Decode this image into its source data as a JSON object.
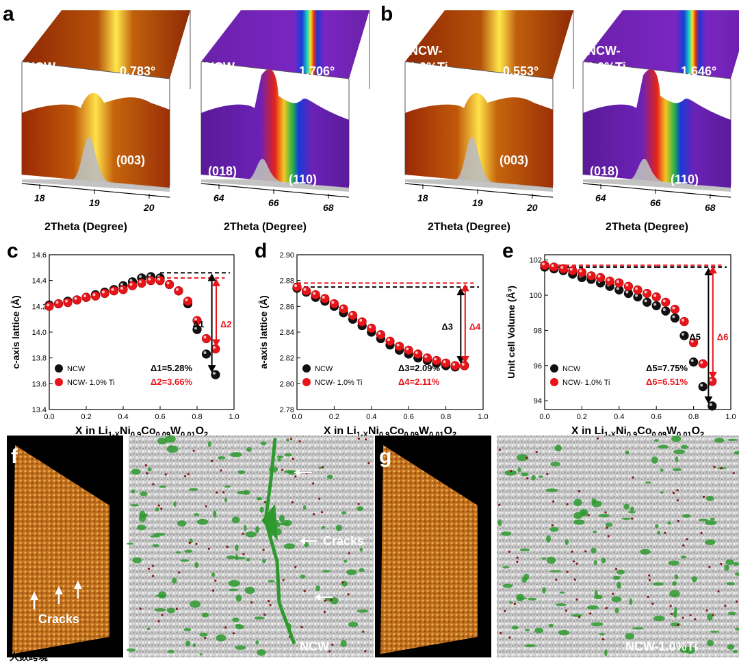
{
  "panels": {
    "a": {
      "label": "a",
      "maps": [
        {
          "sample": "NCW",
          "fwhm": "0.783°",
          "peaks": [
            "(003)"
          ],
          "ticks": [
            "18",
            "19",
            "20"
          ],
          "xlabel": "2Theta (Degree)"
        },
        {
          "sample": "NCW",
          "fwhm": "1.706°",
          "peaks": [
            "(018)",
            "(110)"
          ],
          "ticks": [
            "64",
            "66",
            "68"
          ],
          "xlabel": "2Theta (Degree)"
        }
      ]
    },
    "b": {
      "label": "b",
      "maps": [
        {
          "sample_l1": "NCW-",
          "sample_l2": "1.0%Ti",
          "fwhm": "0.553°",
          "peaks": [
            "(003)"
          ],
          "ticks": [
            "18",
            "19",
            "20"
          ],
          "xlabel": "2Theta (Degree)"
        },
        {
          "sample_l1": "NCW-",
          "sample_l2": "1.0%Ti",
          "fwhm": "1.646°",
          "peaks": [
            "(018)",
            "(110)"
          ],
          "ticks": [
            "64",
            "66",
            "68"
          ],
          "xlabel": "2Theta (Degree)"
        }
      ]
    },
    "f": {
      "label": "f",
      "cracks_label": "Cracks",
      "cracks_label2": "Cracks",
      "sample": "NCW"
    },
    "g": {
      "label": "g",
      "sample": "NCW-1.0%Ti"
    }
  },
  "xlabel_parts": {
    "pre": "X in Li",
    "s1": "1-X",
    "m1": "Ni",
    "s2": "0.9",
    "m2": "Co",
    "s3": "0.09",
    "m3": "W",
    "s4": "0.01",
    "m4": "O",
    "s5": "2"
  },
  "watermark": "大数跨境",
  "chart_data": [
    {
      "panel": "c",
      "type": "scatter",
      "ylabel": "c-axis lattice (Å)",
      "xlim": [
        0.0,
        1.0
      ],
      "ylim": [
        13.4,
        14.6
      ],
      "xticks": [
        "0.0",
        "0.2",
        "0.4",
        "0.6",
        "0.8",
        "1.0"
      ],
      "yticks": [
        "13.4",
        "13.6",
        "13.8",
        "14.0",
        "14.2",
        "14.4",
        "14.6"
      ],
      "series": [
        {
          "name": "NCW",
          "color": "#111111",
          "x": [
            0,
            0.05,
            0.1,
            0.15,
            0.2,
            0.25,
            0.3,
            0.35,
            0.4,
            0.45,
            0.5,
            0.55,
            0.6,
            0.65,
            0.7,
            0.75,
            0.8,
            0.85,
            0.9
          ],
          "y": [
            14.21,
            14.22,
            14.24,
            14.25,
            14.27,
            14.29,
            14.31,
            14.33,
            14.36,
            14.39,
            14.42,
            14.43,
            14.42,
            14.37,
            14.32,
            14.22,
            14.02,
            13.83,
            13.67
          ]
        },
        {
          "name": "NCW- 1.0% Ti",
          "color": "#e8141a",
          "x": [
            0,
            0.05,
            0.1,
            0.15,
            0.2,
            0.25,
            0.3,
            0.35,
            0.4,
            0.45,
            0.5,
            0.55,
            0.6,
            0.65,
            0.7,
            0.75,
            0.8,
            0.85,
            0.9
          ],
          "y": [
            14.2,
            14.22,
            14.23,
            14.25,
            14.27,
            14.28,
            14.3,
            14.32,
            14.33,
            14.36,
            14.38,
            14.4,
            14.4,
            14.37,
            14.32,
            14.24,
            14.09,
            13.95,
            13.87
          ]
        }
      ],
      "delta_black": {
        "label": "Δ1",
        "text": "Δ1=5.28%"
      },
      "delta_red": {
        "label": "Δ2",
        "text": "Δ2=3.66%"
      },
      "ref_black": 14.46,
      "ref_red": 14.42
    },
    {
      "panel": "d",
      "type": "scatter",
      "ylabel": "a-axis lattice (Å)",
      "xlim": [
        0.0,
        1.0
      ],
      "ylim": [
        2.78,
        2.9
      ],
      "xticks": [
        "0.0",
        "0.2",
        "0.4",
        "0.6",
        "0.8",
        "1.0"
      ],
      "yticks": [
        "2.78",
        "2.80",
        "2.82",
        "2.84",
        "2.86",
        "2.88",
        "2.90"
      ],
      "series": [
        {
          "name": "NCW",
          "color": "#111111",
          "x": [
            0,
            0.05,
            0.1,
            0.15,
            0.2,
            0.25,
            0.3,
            0.35,
            0.4,
            0.45,
            0.5,
            0.55,
            0.6,
            0.65,
            0.7,
            0.75,
            0.8,
            0.85,
            0.9
          ],
          "y": [
            2.874,
            2.871,
            2.867,
            2.864,
            2.86,
            2.855,
            2.85,
            2.845,
            2.84,
            2.835,
            2.83,
            2.826,
            2.823,
            2.82,
            2.818,
            2.816,
            2.814,
            2.813,
            2.814
          ]
        },
        {
          "name": "NCW- 1.0% Ti",
          "color": "#e8141a",
          "x": [
            0,
            0.05,
            0.1,
            0.15,
            0.2,
            0.25,
            0.3,
            0.35,
            0.4,
            0.45,
            0.5,
            0.55,
            0.6,
            0.65,
            0.7,
            0.75,
            0.8,
            0.85,
            0.9
          ],
          "y": [
            2.875,
            2.872,
            2.869,
            2.866,
            2.862,
            2.858,
            2.853,
            2.848,
            2.843,
            2.838,
            2.833,
            2.829,
            2.826,
            2.823,
            2.82,
            2.818,
            2.816,
            2.814,
            2.814
          ]
        }
      ],
      "delta_black": {
        "label": "Δ3",
        "text": "Δ3=2.09%"
      },
      "delta_red": {
        "label": "Δ4",
        "text": "Δ4=2.11%"
      },
      "ref_black": 2.875,
      "ref_red": 2.878
    },
    {
      "panel": "e",
      "type": "scatter",
      "ylabel": "Unit cell Volume (Å³)",
      "xlim": [
        0.0,
        1.0
      ],
      "ylim": [
        93.5,
        102.3
      ],
      "xticks": [
        "0.0",
        "0.2",
        "0.4",
        "0.6",
        "0.8",
        "1.0"
      ],
      "yticks": [
        "94",
        "96",
        "98",
        "100",
        "102"
      ],
      "series": [
        {
          "name": "NCW",
          "color": "#111111",
          "x": [
            0,
            0.05,
            0.1,
            0.15,
            0.2,
            0.25,
            0.3,
            0.35,
            0.4,
            0.45,
            0.5,
            0.55,
            0.6,
            0.65,
            0.7,
            0.75,
            0.8,
            0.85,
            0.9
          ],
          "y": [
            101.6,
            101.5,
            101.4,
            101.2,
            101.0,
            100.9,
            100.7,
            100.5,
            100.3,
            100.1,
            99.9,
            99.6,
            99.4,
            99.1,
            98.7,
            97.7,
            96.2,
            94.8,
            93.7
          ]
        },
        {
          "name": "NCW- 1.0% Ti",
          "color": "#e8141a",
          "x": [
            0,
            0.05,
            0.1,
            0.15,
            0.2,
            0.25,
            0.3,
            0.35,
            0.4,
            0.45,
            0.5,
            0.55,
            0.6,
            0.65,
            0.7,
            0.75,
            0.8,
            0.85,
            0.9
          ],
          "y": [
            101.7,
            101.6,
            101.5,
            101.4,
            101.3,
            101.1,
            101.0,
            100.8,
            100.7,
            100.5,
            100.3,
            100.1,
            99.9,
            99.6,
            99.2,
            98.5,
            97.3,
            96.1,
            95.1
          ]
        }
      ],
      "delta_black": {
        "label": "Δ5",
        "text": "Δ5=7.75%"
      },
      "delta_red": {
        "label": "Δ6",
        "text": "Δ6=6.51%"
      },
      "ref_black": 101.6,
      "ref_red": 101.7
    }
  ]
}
